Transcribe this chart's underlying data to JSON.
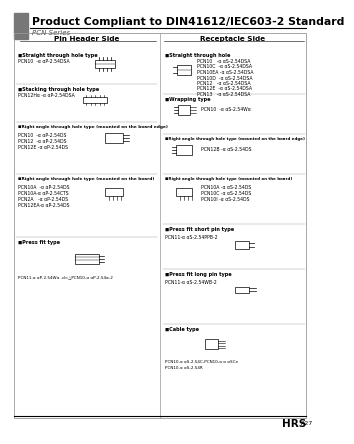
{
  "title": "Product Compliant to DIN41612/IEC603-2 Standard",
  "subtitle": "PCN Series",
  "bg_color": "#ffffff",
  "header_bar_color": "#777777",
  "title_color": "#000000",
  "border_color": "#999999",
  "footer_brand": "HRS",
  "footer_page": "A27",
  "left_column_title": "Pin Header Side",
  "right_column_title": "Receptacle Side"
}
